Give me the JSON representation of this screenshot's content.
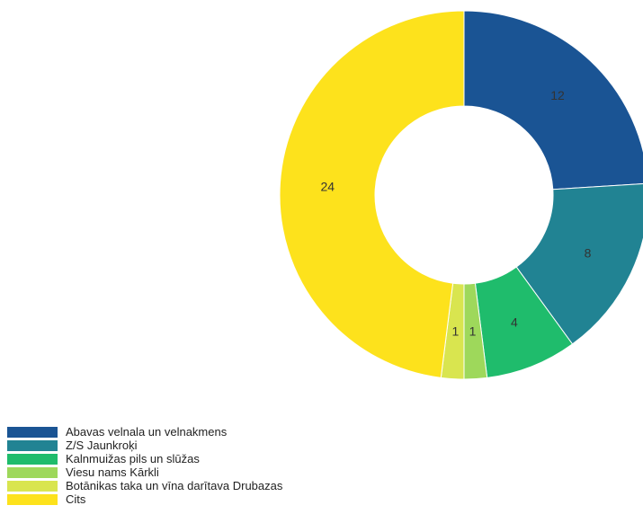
{
  "chart_data": {
    "type": "pie",
    "variant": "donut",
    "legend_position": "bottom-left",
    "slices": [
      {
        "label": "Abavas velnala un velnakmens",
        "value": 12,
        "color": "#1a5494"
      },
      {
        "label": "Z/S Jaunkroķi",
        "value": 8,
        "color": "#218393"
      },
      {
        "label": "Kalnmuižas pils un slūžas",
        "value": 4,
        "color": "#1fbc6c"
      },
      {
        "label": "Viesu nams Kārkli",
        "value": 1,
        "color": "#9ed85b"
      },
      {
        "label": "Botānikas taka un vīna darītava Drubazas",
        "value": 1,
        "color": "#d9e54f"
      },
      {
        "label": "Cits",
        "value": 24,
        "color": "#fde21c"
      }
    ]
  }
}
